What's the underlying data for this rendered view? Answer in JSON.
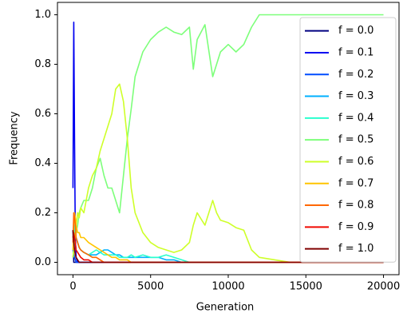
{
  "chart_data": {
    "type": "line",
    "x_label": "Generation",
    "y_label": "Frequency",
    "x": [
      0,
      50,
      100,
      150,
      200,
      300,
      400,
      500,
      700,
      1000,
      1250,
      1500,
      1750,
      2000,
      2250,
      2500,
      2750,
      3000,
      3250,
      3500,
      3750,
      4000,
      4500,
      5000,
      5500,
      6000,
      6500,
      7000,
      7500,
      7750,
      8000,
      8500,
      9000,
      9250,
      9500,
      10000,
      10500,
      11000,
      11500,
      12000,
      13000,
      14000,
      16000,
      18000,
      20000
    ],
    "series": [
      {
        "name": "f = 0.0",
        "color": "#000080",
        "values": [
          0.13,
          0,
          0,
          0,
          0,
          0,
          0,
          0,
          0,
          0,
          0,
          0,
          0,
          0,
          0,
          0,
          0,
          0,
          0,
          0,
          0,
          0,
          0,
          0,
          0,
          0,
          0,
          0,
          0,
          0,
          0,
          0,
          0,
          0,
          0,
          0,
          0,
          0,
          0,
          0,
          0,
          0,
          0,
          0,
          0
        ]
      },
      {
        "name": "f = 0.1",
        "color": "#0000f1",
        "values": [
          0.3,
          0.97,
          0.5,
          0.1,
          0.02,
          0,
          0,
          0,
          0,
          0,
          0,
          0,
          0,
          0,
          0,
          0,
          0,
          0,
          0,
          0,
          0,
          0,
          0,
          0,
          0,
          0,
          0,
          0,
          0,
          0,
          0,
          0,
          0,
          0,
          0,
          0,
          0,
          0,
          0,
          0,
          0,
          0,
          0,
          0,
          0
        ]
      },
      {
        "name": "f = 0.2",
        "color": "#004cff",
        "values": [
          0.05,
          0.03,
          0.02,
          0.01,
          0,
          0,
          0,
          0,
          0,
          0,
          0,
          0,
          0,
          0,
          0,
          0,
          0,
          0,
          0,
          0,
          0,
          0,
          0,
          0,
          0,
          0,
          0,
          0,
          0,
          0,
          0,
          0,
          0,
          0,
          0,
          0,
          0,
          0,
          0,
          0,
          0,
          0,
          0,
          0,
          0
        ]
      },
      {
        "name": "f = 0.3",
        "color": "#00b0ff",
        "values": [
          0.02,
          0.05,
          0.08,
          0.1,
          0.1,
          0.08,
          0.06,
          0.05,
          0.04,
          0.03,
          0.03,
          0.03,
          0.04,
          0.05,
          0.05,
          0.04,
          0.03,
          0.03,
          0.02,
          0.02,
          0.02,
          0.02,
          0.02,
          0.02,
          0.02,
          0.01,
          0.01,
          0,
          0,
          0,
          0,
          0,
          0,
          0,
          0,
          0,
          0,
          0,
          0,
          0,
          0,
          0,
          0,
          0,
          0
        ]
      },
      {
        "name": "f = 0.4",
        "color": "#29ffce",
        "values": [
          0.05,
          0.1,
          0.15,
          0.12,
          0.1,
          0.08,
          0.06,
          0.05,
          0.04,
          0.03,
          0.04,
          0.05,
          0.04,
          0.03,
          0.03,
          0.03,
          0.03,
          0.02,
          0.02,
          0.02,
          0.03,
          0.02,
          0.03,
          0.02,
          0.02,
          0.03,
          0.02,
          0.01,
          0,
          0,
          0,
          0,
          0,
          0,
          0,
          0,
          0,
          0,
          0,
          0,
          0,
          0,
          0,
          0,
          0
        ]
      },
      {
        "name": "f = 0.5",
        "color": "#7dff7a",
        "values": [
          0.02,
          0.05,
          0.1,
          0.1,
          0.12,
          0.15,
          0.2,
          0.22,
          0.25,
          0.25,
          0.3,
          0.38,
          0.42,
          0.35,
          0.3,
          0.3,
          0.25,
          0.2,
          0.35,
          0.5,
          0.62,
          0.75,
          0.85,
          0.9,
          0.93,
          0.95,
          0.93,
          0.92,
          0.95,
          0.78,
          0.9,
          0.96,
          0.75,
          0.8,
          0.85,
          0.88,
          0.85,
          0.88,
          0.95,
          1.0,
          1.0,
          1.0,
          1.0,
          1.0,
          1.0
        ]
      },
      {
        "name": "f = 0.6",
        "color": "#ceff29",
        "values": [
          0.02,
          0.05,
          0.1,
          0.12,
          0.15,
          0.2,
          0.18,
          0.22,
          0.2,
          0.3,
          0.35,
          0.38,
          0.45,
          0.5,
          0.55,
          0.6,
          0.7,
          0.72,
          0.65,
          0.5,
          0.3,
          0.2,
          0.12,
          0.08,
          0.06,
          0.05,
          0.04,
          0.05,
          0.08,
          0.15,
          0.2,
          0.15,
          0.25,
          0.2,
          0.17,
          0.16,
          0.14,
          0.13,
          0.05,
          0.02,
          0.01,
          0,
          0,
          0,
          0
        ]
      },
      {
        "name": "f = 0.7",
        "color": "#ffc400",
        "values": [
          0.05,
          0.15,
          0.2,
          0.18,
          0.15,
          0.12,
          0.12,
          0.1,
          0.1,
          0.08,
          0.07,
          0.06,
          0.05,
          0.04,
          0.03,
          0.02,
          0.02,
          0.01,
          0.01,
          0.01,
          0,
          0,
          0,
          0,
          0,
          0,
          0,
          0,
          0,
          0,
          0,
          0,
          0,
          0,
          0,
          0,
          0,
          0,
          0,
          0,
          0,
          0,
          0,
          0,
          0
        ]
      },
      {
        "name": "f = 0.8",
        "color": "#ff6800",
        "values": [
          0.08,
          0.2,
          0.18,
          0.15,
          0.1,
          0.08,
          0.06,
          0.05,
          0.04,
          0.03,
          0.02,
          0.02,
          0.01,
          0,
          0,
          0,
          0,
          0,
          0,
          0,
          0,
          0,
          0,
          0,
          0,
          0,
          0,
          0,
          0,
          0,
          0,
          0,
          0,
          0,
          0,
          0,
          0,
          0,
          0,
          0,
          0,
          0,
          0,
          0,
          0
        ]
      },
      {
        "name": "f = 0.9",
        "color": "#f10800",
        "values": [
          0.1,
          0.12,
          0.1,
          0.08,
          0.05,
          0.04,
          0.03,
          0.02,
          0.01,
          0.01,
          0,
          0,
          0,
          0,
          0,
          0,
          0,
          0,
          0,
          0,
          0,
          0,
          0,
          0,
          0,
          0,
          0,
          0,
          0,
          0,
          0,
          0,
          0,
          0,
          0,
          0,
          0,
          0,
          0,
          0,
          0,
          0,
          0,
          0,
          0
        ]
      },
      {
        "name": "f = 1.0",
        "color": "#800000",
        "values": [
          0.13,
          0.08,
          0.05,
          0.03,
          0.02,
          0.01,
          0,
          0,
          0,
          0,
          0,
          0,
          0,
          0,
          0,
          0,
          0,
          0,
          0,
          0,
          0,
          0,
          0,
          0,
          0,
          0,
          0,
          0,
          0,
          0,
          0,
          0,
          0,
          0,
          0,
          0,
          0,
          0,
          0,
          0,
          0,
          0,
          0,
          0,
          0
        ]
      }
    ],
    "xlim": [
      -1000,
      21000
    ],
    "ylim": [
      -0.05,
      1.05
    ],
    "xticks": [
      0,
      5000,
      10000,
      15000,
      20000
    ],
    "yticks": [
      {
        "value": 0,
        "label": "0.0"
      },
      0.2,
      0.4,
      0.6,
      0.8,
      {
        "value": 1,
        "label": "1.0"
      }
    ],
    "legend": "upper right"
  }
}
